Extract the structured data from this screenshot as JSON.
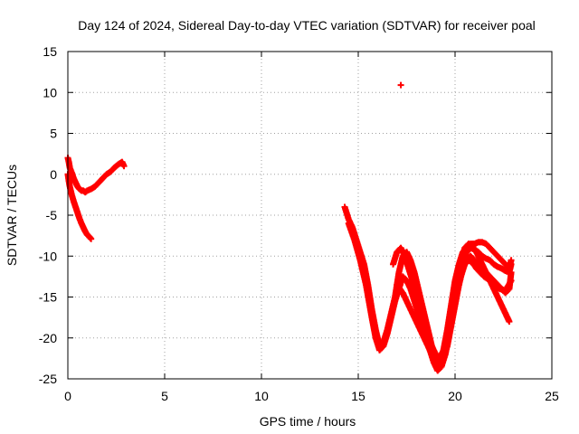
{
  "chart_data": {
    "type": "scatter",
    "title": "Day 124 of 2024, Sidereal Day-to-day VTEC variation (SDTVAR) for receiver poal",
    "xlabel": "GPS time / hours",
    "ylabel": "SDTVAR / TECUs",
    "xlim": [
      0,
      25
    ],
    "ylim": [
      -25,
      15
    ],
    "xticks": [
      0,
      5,
      10,
      15,
      20,
      25
    ],
    "yticks": [
      -25,
      -20,
      -15,
      -10,
      -5,
      0,
      5,
      10,
      15
    ],
    "grid": true,
    "marker": "+",
    "color": "#ff0000",
    "series": [
      {
        "name": "early-upper",
        "points": [
          [
            0.0,
            2.0
          ],
          [
            0.05,
            1.5
          ],
          [
            0.1,
            0.8
          ],
          [
            0.2,
            0.2
          ],
          [
            0.3,
            -0.5
          ],
          [
            0.4,
            -1.0
          ],
          [
            0.5,
            -1.5
          ],
          [
            0.6,
            -1.8
          ],
          [
            0.7,
            -2.0
          ],
          [
            0.8,
            -2.0
          ],
          [
            0.9,
            -2.2
          ],
          [
            1.0,
            -2.0
          ],
          [
            1.2,
            -1.8
          ],
          [
            1.4,
            -1.5
          ],
          [
            1.6,
            -1.0
          ],
          [
            1.8,
            -0.5
          ],
          [
            2.0,
            0.0
          ],
          [
            2.2,
            0.3
          ],
          [
            2.4,
            0.8
          ],
          [
            2.6,
            1.2
          ],
          [
            2.8,
            1.5
          ],
          [
            2.9,
            1.0
          ]
        ]
      },
      {
        "name": "early-lower",
        "points": [
          [
            0.0,
            0.0
          ],
          [
            0.05,
            -0.8
          ],
          [
            0.1,
            -1.5
          ],
          [
            0.2,
            -2.5
          ],
          [
            0.3,
            -3.3
          ],
          [
            0.4,
            -4.0
          ],
          [
            0.5,
            -4.7
          ],
          [
            0.6,
            -5.4
          ],
          [
            0.7,
            -6.0
          ],
          [
            0.8,
            -6.5
          ],
          [
            0.9,
            -7.0
          ],
          [
            1.0,
            -7.4
          ],
          [
            1.1,
            -7.6
          ],
          [
            1.2,
            -7.9
          ]
        ]
      },
      {
        "name": "outlier",
        "points": [
          [
            17.2,
            10.9
          ]
        ]
      },
      {
        "name": "late-a",
        "points": [
          [
            14.3,
            -4.0
          ],
          [
            14.5,
            -5.5
          ],
          [
            14.7,
            -6.5
          ],
          [
            14.9,
            -8.0
          ],
          [
            15.1,
            -9.5
          ],
          [
            15.3,
            -11.0
          ],
          [
            15.5,
            -13.5
          ],
          [
            15.7,
            -16.5
          ],
          [
            15.9,
            -19.0
          ],
          [
            16.1,
            -21.0
          ],
          [
            16.3,
            -20.5
          ],
          [
            16.5,
            -19.0
          ],
          [
            16.7,
            -17.0
          ],
          [
            16.9,
            -15.0
          ],
          [
            17.1,
            -12.0
          ],
          [
            17.3,
            -10.0
          ],
          [
            17.5,
            -9.5
          ],
          [
            17.7,
            -10.5
          ],
          [
            17.9,
            -12.0
          ],
          [
            18.1,
            -14.0
          ],
          [
            18.3,
            -16.0
          ],
          [
            18.5,
            -18.0
          ],
          [
            18.7,
            -20.0
          ],
          [
            18.9,
            -22.0
          ],
          [
            19.1,
            -23.5
          ],
          [
            19.3,
            -23.0
          ],
          [
            19.5,
            -21.5
          ],
          [
            19.7,
            -19.0
          ],
          [
            19.9,
            -16.0
          ],
          [
            20.1,
            -13.5
          ],
          [
            20.3,
            -11.0
          ],
          [
            20.5,
            -9.0
          ],
          [
            20.7,
            -8.5
          ],
          [
            20.9,
            -8.8
          ],
          [
            21.1,
            -9.5
          ],
          [
            21.3,
            -10.5
          ],
          [
            21.5,
            -11.5
          ],
          [
            21.7,
            -12.5
          ],
          [
            21.9,
            -13.5
          ],
          [
            22.1,
            -14.5
          ],
          [
            22.3,
            -15.5
          ],
          [
            22.5,
            -16.5
          ],
          [
            22.7,
            -17.5
          ],
          [
            22.8,
            -18.0
          ]
        ]
      },
      {
        "name": "late-b",
        "points": [
          [
            14.5,
            -6.0
          ],
          [
            14.8,
            -8.0
          ],
          [
            15.1,
            -10.5
          ],
          [
            15.4,
            -13.5
          ],
          [
            15.7,
            -17.5
          ],
          [
            15.9,
            -20.0
          ],
          [
            16.1,
            -21.5
          ],
          [
            16.3,
            -21.0
          ],
          [
            16.5,
            -19.5
          ],
          [
            16.7,
            -17.5
          ],
          [
            16.9,
            -15.5
          ],
          [
            17.1,
            -14.0
          ],
          [
            17.3,
            -12.5
          ],
          [
            17.5,
            -13.0
          ],
          [
            17.7,
            -14.0
          ],
          [
            17.9,
            -15.5
          ],
          [
            18.1,
            -17.0
          ],
          [
            18.3,
            -18.5
          ],
          [
            18.5,
            -20.0
          ],
          [
            18.7,
            -21.5
          ],
          [
            18.9,
            -23.0
          ],
          [
            19.1,
            -24.0
          ],
          [
            19.3,
            -23.5
          ],
          [
            19.5,
            -22.0
          ],
          [
            19.7,
            -19.5
          ],
          [
            19.9,
            -17.0
          ],
          [
            20.1,
            -14.5
          ],
          [
            20.3,
            -12.5
          ],
          [
            20.5,
            -11.0
          ],
          [
            20.7,
            -10.5
          ],
          [
            20.9,
            -10.8
          ],
          [
            21.1,
            -11.5
          ],
          [
            21.3,
            -12.0
          ],
          [
            21.5,
            -12.5
          ],
          [
            21.8,
            -13.0
          ],
          [
            22.0,
            -13.5
          ],
          [
            22.3,
            -14.0
          ],
          [
            22.6,
            -14.2
          ],
          [
            22.9,
            -13.0
          ]
        ]
      },
      {
        "name": "late-c",
        "points": [
          [
            16.8,
            -11.0
          ],
          [
            17.0,
            -9.5
          ],
          [
            17.2,
            -9.0
          ],
          [
            17.4,
            -10.0
          ],
          [
            17.6,
            -11.5
          ],
          [
            17.8,
            -13.0
          ],
          [
            18.0,
            -15.0
          ],
          [
            18.2,
            -17.0
          ],
          [
            18.4,
            -19.0
          ],
          [
            18.6,
            -20.5
          ],
          [
            18.8,
            -21.0
          ],
          [
            19.0,
            -22.0
          ],
          [
            19.2,
            -22.5
          ],
          [
            19.4,
            -21.5
          ],
          [
            19.6,
            -19.0
          ],
          [
            19.8,
            -16.0
          ],
          [
            20.0,
            -13.0
          ],
          [
            20.2,
            -11.0
          ],
          [
            20.4,
            -9.5
          ],
          [
            20.6,
            -9.0
          ],
          [
            20.8,
            -8.5
          ],
          [
            21.0,
            -8.5
          ],
          [
            21.2,
            -8.3
          ],
          [
            21.4,
            -8.3
          ],
          [
            21.6,
            -8.5
          ],
          [
            21.8,
            -9.0
          ],
          [
            22.0,
            -9.5
          ],
          [
            22.2,
            -10.0
          ],
          [
            22.4,
            -10.5
          ],
          [
            22.6,
            -11.0
          ],
          [
            22.8,
            -11.5
          ],
          [
            22.9,
            -10.5
          ]
        ]
      },
      {
        "name": "late-d",
        "points": [
          [
            17.0,
            -13.5
          ],
          [
            17.3,
            -14.5
          ],
          [
            17.6,
            -16.0
          ],
          [
            17.9,
            -17.5
          ],
          [
            18.2,
            -19.0
          ],
          [
            18.5,
            -20.5
          ],
          [
            18.8,
            -22.0
          ],
          [
            19.0,
            -23.0
          ],
          [
            19.2,
            -23.5
          ],
          [
            19.4,
            -22.5
          ],
          [
            19.6,
            -21.0
          ],
          [
            19.8,
            -18.5
          ],
          [
            20.0,
            -16.0
          ],
          [
            20.2,
            -13.5
          ],
          [
            20.4,
            -11.5
          ],
          [
            20.6,
            -10.5
          ],
          [
            20.8,
            -10.0
          ],
          [
            21.0,
            -10.5
          ],
          [
            21.2,
            -11.0
          ],
          [
            21.4,
            -11.5
          ],
          [
            21.6,
            -12.0
          ],
          [
            21.8,
            -12.5
          ],
          [
            22.0,
            -13.0
          ],
          [
            22.2,
            -13.5
          ],
          [
            22.4,
            -14.0
          ],
          [
            22.6,
            -14.5
          ],
          [
            22.8,
            -14.0
          ],
          [
            22.9,
            -12.0
          ]
        ]
      },
      {
        "name": "late-e",
        "points": [
          [
            19.8,
            -16.5
          ],
          [
            20.0,
            -14.0
          ],
          [
            20.2,
            -12.0
          ],
          [
            20.4,
            -10.5
          ],
          [
            20.6,
            -9.5
          ],
          [
            20.8,
            -9.0
          ],
          [
            21.0,
            -9.2
          ],
          [
            21.2,
            -9.5
          ],
          [
            21.4,
            -10.0
          ],
          [
            21.6,
            -10.3
          ],
          [
            21.8,
            -10.5
          ],
          [
            22.0,
            -11.0
          ],
          [
            22.2,
            -11.3
          ],
          [
            22.4,
            -11.5
          ],
          [
            22.6,
            -11.8
          ],
          [
            22.8,
            -12.0
          ],
          [
            22.9,
            -11.0
          ]
        ]
      }
    ]
  }
}
